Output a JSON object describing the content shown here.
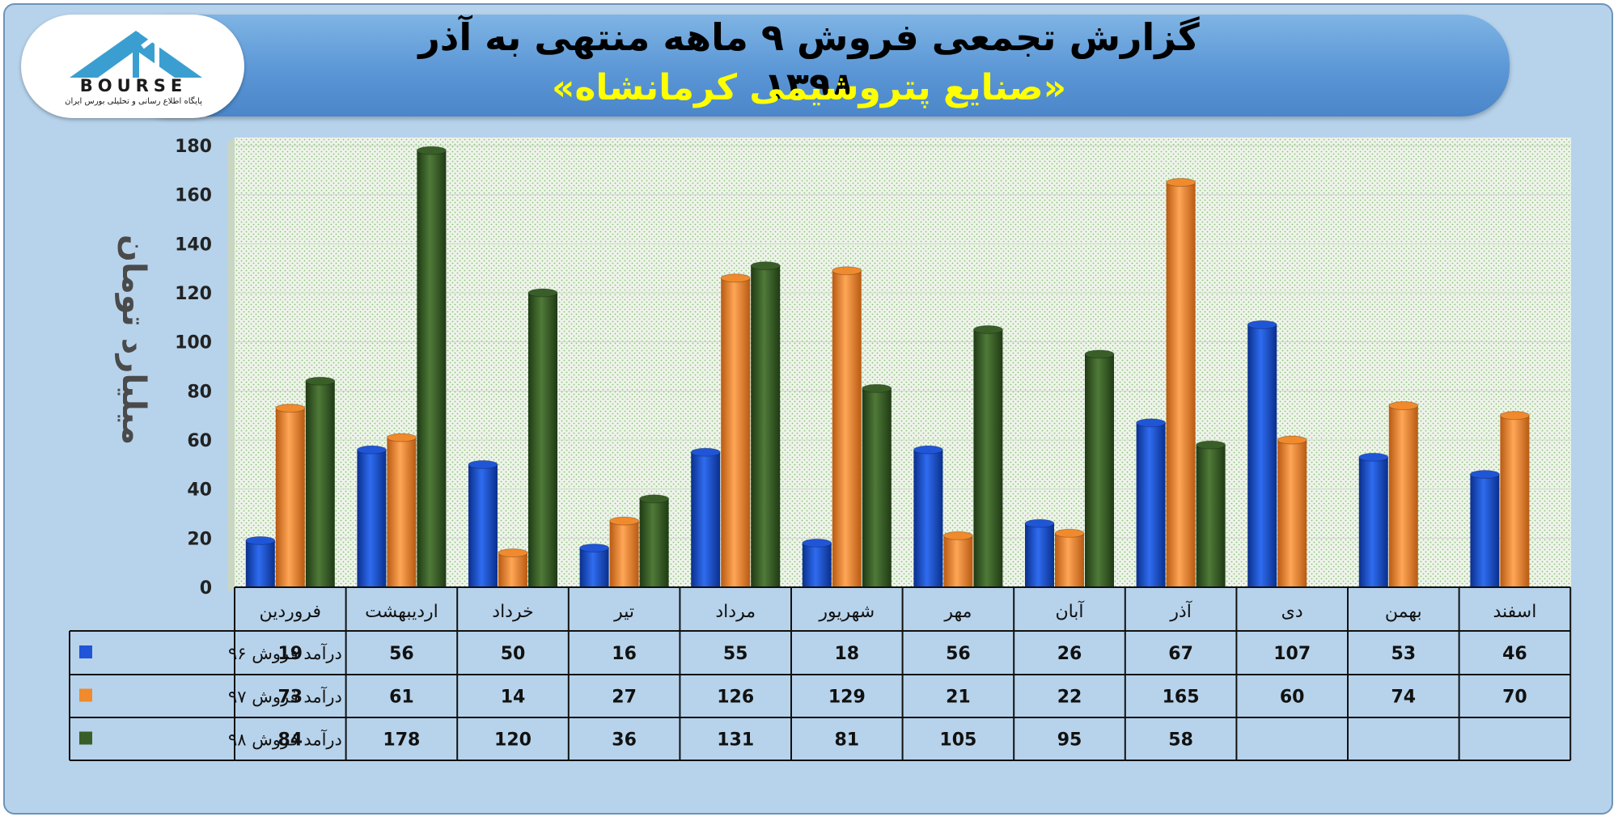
{
  "title": "گزارش تجمعی فروش ۹ ماهه منتهی به آذر ۱۳۹۸",
  "subtitle": "«صنایع پتروشیمی کرمانشاه»",
  "logo": {
    "wordmark": "BOURSE",
    "tagline": "پایگاه اطلاع رسانی و تحلیلی بورس ایران"
  },
  "chart_data": {
    "type": "bar",
    "ylabel": "میلیارد تومان",
    "ylim": [
      0,
      180
    ],
    "yticks": [
      0,
      20,
      40,
      60,
      80,
      100,
      120,
      140,
      160,
      180
    ],
    "grid": true,
    "legend_placement": "table-left",
    "categories": [
      "فروردین",
      "اردیبهشت",
      "خرداد",
      "تیر",
      "مرداد",
      "شهریور",
      "مهر",
      "آبان",
      "آذر",
      "دی",
      "بهمن",
      "اسفند"
    ],
    "series": [
      {
        "name": "درآمد فروش ۹۶",
        "color": "#1f55d6",
        "values": [
          19,
          56,
          50,
          16,
          55,
          18,
          56,
          26,
          67,
          107,
          53,
          46
        ]
      },
      {
        "name": "درآمد فروش ۹۷",
        "color": "#f08a2c",
        "values": [
          73,
          61,
          14,
          27,
          126,
          129,
          21,
          22,
          165,
          60,
          74,
          70
        ]
      },
      {
        "name": "درآمد فروش ۹۸",
        "color": "#3a5e28",
        "values": [
          84,
          178,
          120,
          36,
          131,
          81,
          105,
          95,
          58,
          null,
          null,
          null
        ]
      }
    ]
  }
}
